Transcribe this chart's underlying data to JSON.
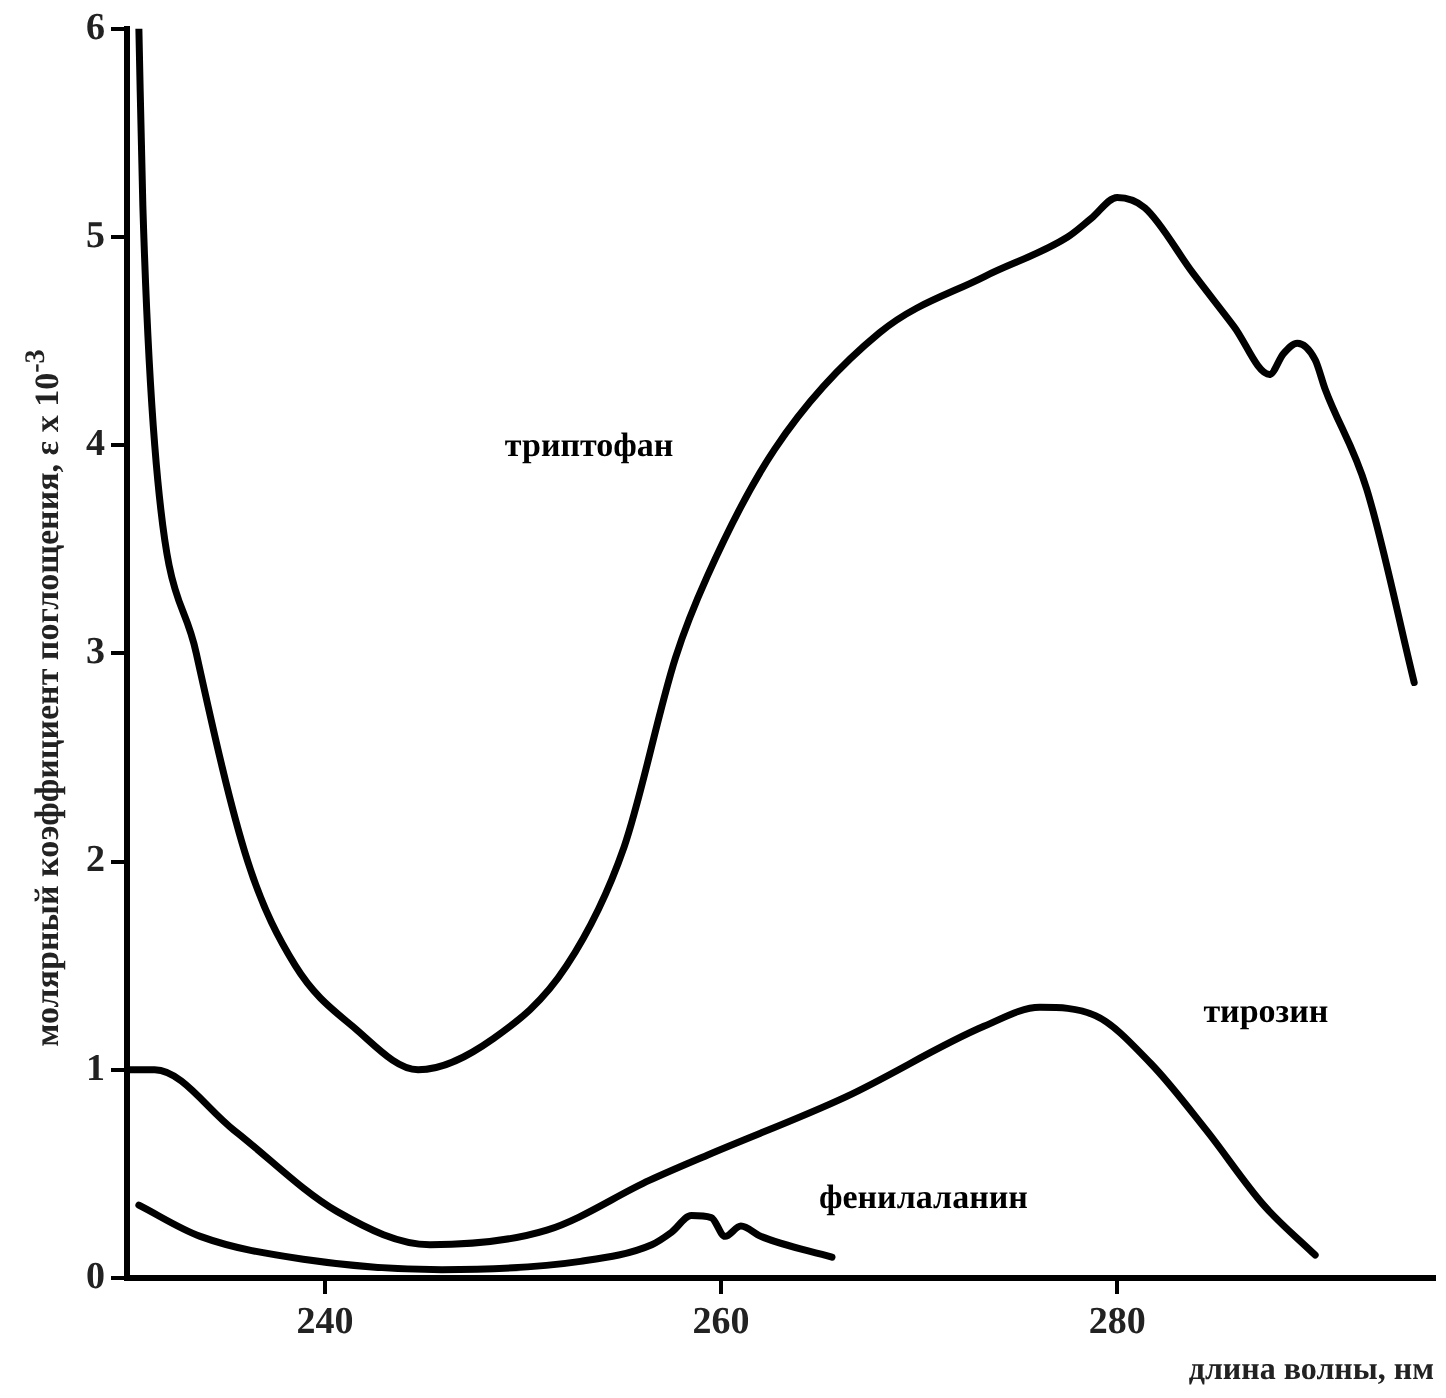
{
  "chart_data": {
    "type": "line",
    "xlabel": "длина волны, нм",
    "ylabel": "молярный коэффициент поглощения, ε x 10$^{-3}$",
    "xlim": [
      230,
      296
    ],
    "xticks": [
      240,
      260,
      280
    ],
    "ylim": [
      0,
      6
    ],
    "yticks": [
      0,
      1,
      2,
      3,
      4,
      5,
      6
    ],
    "grid": false,
    "legend": false,
    "marker": "none",
    "line_style": "solid",
    "series": [
      {
        "name": "триптофан",
        "color": "#000000",
        "x": [
          230.6,
          230.8,
          231.4,
          233.5,
          236.1,
          238.5,
          241.5,
          244.7,
          248.5,
          252.2,
          255.1,
          257.7,
          259.3,
          262.7,
          268,
          273.3,
          277.5,
          278.7,
          280,
          281.4,
          283.8,
          285.9,
          287.7,
          288.4,
          289.1,
          290,
          290.5,
          292.6,
          295
        ],
        "values": [
          6.0,
          5.15,
          4.0,
          3.0,
          2.0,
          1.5,
          1.2,
          1.0,
          1.15,
          1.5,
          2.07,
          2.98,
          3.37,
          3.98,
          4.54,
          4.81,
          5.0,
          5.09,
          5.19,
          5.14,
          4.83,
          4.57,
          4.34,
          4.44,
          4.49,
          4.41,
          4.27,
          3.79,
          2.86
        ]
      },
      {
        "name": "тирозин",
        "color": "#000000",
        "x": [
          230.1,
          231.4,
          235.4,
          240.6,
          245.3,
          251.2,
          256.4,
          259.3,
          266.3,
          273.3,
          276.1,
          278.9,
          281.7,
          284.5,
          287.4,
          290
        ],
        "values": [
          1.0,
          1.0,
          0.71,
          0.32,
          0.16,
          0.23,
          0.47,
          0.59,
          0.87,
          1.21,
          1.3,
          1.26,
          1.03,
          0.71,
          0.35,
          0.11
        ]
      },
      {
        "name": "фенилаланин",
        "color": "#000000",
        "x": [
          230.6,
          233.7,
          238.9,
          245.9,
          252.9,
          256.5,
          257.5,
          258.5,
          259.5,
          260.2,
          261,
          262,
          265.6
        ],
        "values": [
          0.35,
          0.2,
          0.09,
          0.04,
          0.08,
          0.16,
          0.22,
          0.3,
          0.29,
          0.2,
          0.25,
          0.2,
          0.1
        ]
      }
    ]
  }
}
